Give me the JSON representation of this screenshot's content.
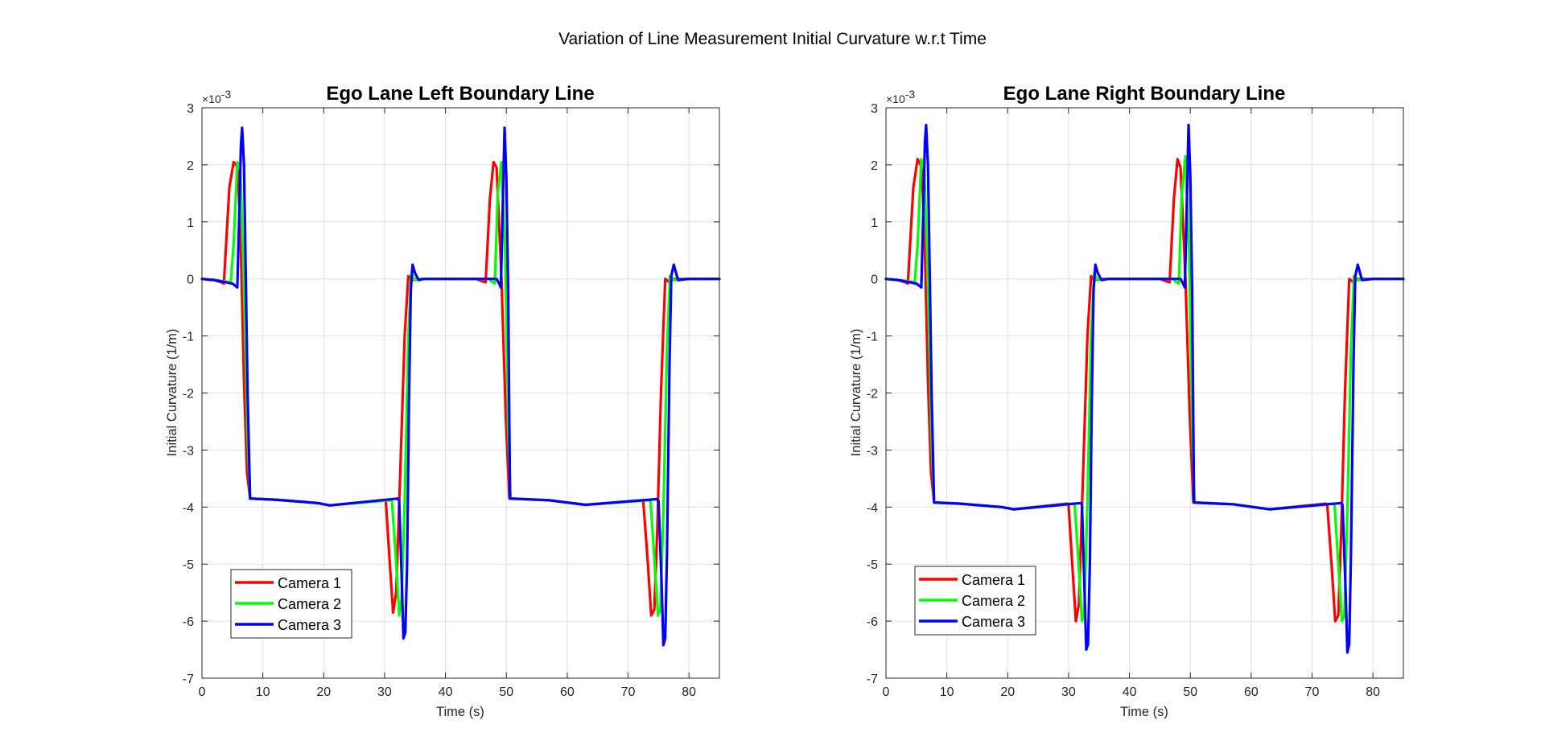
{
  "figure_title": "Variation of Line Measurement Initial Curvature w.r.t Time",
  "colors": {
    "camera1": "#ff0000",
    "camera2": "#00ff00",
    "camera3": "#0000ff",
    "grid": "#dfdfdf",
    "axes": "#262626"
  },
  "chart_data": [
    {
      "type": "line",
      "title": "Ego Lane Left Boundary Line",
      "xlabel": "Time (s)",
      "ylabel": "Initial Curvature (1/m)",
      "xlim": [
        0,
        85
      ],
      "ylim": [
        -7,
        3
      ],
      "y_multiplier": "×10-3",
      "y_multiplier_base": "×10",
      "y_multiplier_exp": "-3",
      "xticks": [
        0,
        10,
        20,
        30,
        40,
        50,
        60,
        70,
        80
      ],
      "yticks": [
        -7,
        -6,
        -5,
        -4,
        -3,
        -2,
        -1,
        0,
        1,
        2,
        3
      ],
      "grid": true,
      "legend_position": "bottom-left",
      "series": [
        {
          "name": "Camera 1",
          "color": "#ff0000",
          "x": [
            0,
            2,
            3.2,
            3.6,
            4.5,
            5.2,
            5.9,
            6.4,
            6.9,
            7.4,
            7.9,
            12,
            19,
            21,
            30,
            30.2,
            30.8,
            31.4,
            31.9,
            32.5,
            33.3,
            33.9,
            34.4,
            35.5,
            45,
            46.3,
            46.6,
            47.3,
            47.9,
            48.4,
            49.2,
            49.9,
            50.5,
            57,
            63,
            72.3,
            72.5,
            73.2,
            73.8,
            74.3,
            74.8,
            75.4,
            76.1,
            76.7,
            77.6,
            80,
            85
          ],
          "y": [
            0,
            -0.02,
            -0.06,
            -0.08,
            1.6,
            2.05,
            1.95,
            0.5,
            -1.8,
            -3.4,
            -3.85,
            -3.87,
            -3.93,
            -3.97,
            -3.88,
            -3.9,
            -4.9,
            -5.85,
            -5.5,
            -3.6,
            -1.0,
            0.05,
            -0.02,
            0,
            0,
            -0.05,
            -0.06,
            1.4,
            2.05,
            1.95,
            0,
            -2.4,
            -3.85,
            -3.88,
            -3.96,
            -3.88,
            -3.9,
            -4.9,
            -5.9,
            -5.8,
            -4.4,
            -2.0,
            0.0,
            -0.05,
            0,
            0,
            0
          ]
        },
        {
          "name": "Camera 2",
          "color": "#00ff00",
          "x": [
            0,
            2,
            4.2,
            4.7,
            5.2,
            5.8,
            6.3,
            6.8,
            7.2,
            7.5,
            7.9,
            12,
            19,
            21,
            31,
            31.2,
            31.8,
            32.4,
            32.8,
            33.3,
            33.9,
            34.4,
            34.9,
            36,
            47.2,
            47.6,
            48.1,
            48.6,
            49.2,
            49.8,
            50.3,
            50.7,
            57,
            63,
            73.5,
            73.7,
            74.3,
            74.9,
            75.3,
            75.8,
            76.4,
            76.9,
            77.6,
            80,
            85
          ],
          "y": [
            0,
            -0.02,
            -0.05,
            -0.08,
            0.6,
            2.05,
            1.9,
            0.3,
            -1.5,
            -2.8,
            -3.85,
            -3.87,
            -3.93,
            -3.97,
            -3.88,
            -3.9,
            -4.8,
            -5.9,
            -5.6,
            -3.9,
            -1.0,
            0.1,
            -0.02,
            0,
            0,
            -0.05,
            -0.08,
            1.5,
            2.05,
            0.5,
            -2.6,
            -3.85,
            -3.88,
            -3.96,
            -3.88,
            -3.9,
            -4.9,
            -5.9,
            -5.8,
            -4.1,
            -1.2,
            0.05,
            -0.02,
            0,
            0
          ]
        },
        {
          "name": "Camera 3",
          "color": "#0000ff",
          "x": [
            0,
            2,
            5.0,
            5.8,
            6.1,
            6.4,
            6.6,
            6.9,
            7.2,
            7.5,
            7.9,
            12,
            19,
            21,
            32.2,
            32.4,
            32.8,
            33.1,
            33.4,
            33.7,
            34.0,
            34.3,
            34.6,
            35,
            35.6,
            36.5,
            48.4,
            48.8,
            49.1,
            49.4,
            49.7,
            50.0,
            50.3,
            50.6,
            57,
            63,
            74.8,
            75.0,
            75.5,
            75.8,
            76.1,
            76.4,
            76.8,
            77.1,
            77.5,
            78.2,
            80,
            85
          ],
          "y": [
            0,
            -0.02,
            -0.08,
            -0.15,
            1.0,
            2.35,
            2.65,
            2.0,
            0,
            -2.0,
            -3.85,
            -3.87,
            -3.93,
            -3.97,
            -3.85,
            -3.9,
            -5.2,
            -6.3,
            -6.2,
            -5.0,
            -2.2,
            -0.2,
            0.25,
            0.1,
            -0.02,
            0,
            0,
            -0.08,
            -0.15,
            1.2,
            2.65,
            1.8,
            -0.2,
            -3.85,
            -3.88,
            -3.96,
            -3.86,
            -3.9,
            -5.3,
            -6.42,
            -6.3,
            -4.8,
            -1.5,
            0.05,
            0.25,
            -0.02,
            0,
            0
          ]
        }
      ]
    },
    {
      "type": "line",
      "title": "Ego Lane Right Boundary Line",
      "xlabel": "Time (s)",
      "ylabel": "Initial Curvature (1/m)",
      "xlim": [
        0,
        85
      ],
      "ylim": [
        -7,
        3
      ],
      "y_multiplier": "×10-3",
      "y_multiplier_base": "×10",
      "y_multiplier_exp": "-3",
      "xticks": [
        0,
        10,
        20,
        30,
        40,
        50,
        60,
        70,
        80
      ],
      "yticks": [
        -7,
        -6,
        -5,
        -4,
        -3,
        -2,
        -1,
        0,
        1,
        2,
        3
      ],
      "grid": true,
      "legend_position": "bottom-left",
      "series": [
        {
          "name": "Camera 1",
          "color": "#ff0000",
          "x": [
            0,
            2,
            3.2,
            3.6,
            4.5,
            5.2,
            5.9,
            6.4,
            6.9,
            7.4,
            7.9,
            12,
            19,
            21,
            29.8,
            30,
            30.6,
            31.2,
            31.7,
            32.3,
            33.1,
            33.7,
            34.2,
            35.3,
            45,
            46.3,
            46.6,
            47.3,
            47.9,
            48.4,
            49.2,
            49.9,
            50.5,
            57,
            63,
            72.3,
            72.5,
            73.2,
            73.8,
            74.3,
            74.8,
            75.4,
            76.1,
            76.7,
            77.6,
            80,
            85
          ],
          "y": [
            0,
            -0.02,
            -0.06,
            -0.08,
            1.6,
            2.1,
            1.95,
            0.5,
            -1.8,
            -3.4,
            -3.92,
            -3.94,
            -4.0,
            -4.04,
            -3.94,
            -3.96,
            -5.0,
            -6.0,
            -5.7,
            -3.7,
            -1.0,
            0.05,
            -0.02,
            0,
            0,
            -0.05,
            -0.06,
            1.4,
            2.1,
            1.95,
            0,
            -2.4,
            -3.92,
            -3.95,
            -4.04,
            -3.94,
            -3.96,
            -5.0,
            -6.0,
            -5.9,
            -4.4,
            -2.0,
            0.0,
            -0.05,
            0,
            0,
            0
          ]
        },
        {
          "name": "Camera 2",
          "color": "#00ff00",
          "x": [
            0,
            2,
            4.2,
            4.7,
            5.2,
            5.8,
            6.3,
            6.8,
            7.2,
            7.5,
            7.9,
            12,
            19,
            21,
            30.8,
            31,
            31.6,
            32.2,
            32.6,
            33.1,
            33.7,
            34.2,
            34.7,
            36,
            47.2,
            47.6,
            48.1,
            48.6,
            49.2,
            49.8,
            50.3,
            50.7,
            57,
            63,
            73.5,
            73.7,
            74.3,
            74.9,
            75.3,
            75.8,
            76.4,
            76.9,
            77.6,
            80,
            85
          ],
          "y": [
            0,
            -0.02,
            -0.05,
            -0.08,
            0.6,
            2.1,
            1.9,
            0.3,
            -1.5,
            -2.8,
            -3.92,
            -3.94,
            -4.0,
            -4.04,
            -3.94,
            -3.96,
            -4.9,
            -6.0,
            -5.8,
            -3.9,
            -1.0,
            0.1,
            -0.02,
            0,
            0,
            -0.05,
            -0.08,
            1.5,
            2.15,
            0.5,
            -2.6,
            -3.92,
            -3.95,
            -4.04,
            -3.94,
            -3.96,
            -5.0,
            -6.0,
            -5.9,
            -4.1,
            -1.2,
            0.05,
            -0.02,
            0,
            0
          ]
        },
        {
          "name": "Camera 3",
          "color": "#0000ff",
          "x": [
            0,
            2,
            5.0,
            5.8,
            6.1,
            6.4,
            6.6,
            6.9,
            7.2,
            7.5,
            7.9,
            12,
            19,
            21,
            32.0,
            32.2,
            32.6,
            32.9,
            33.2,
            33.5,
            33.8,
            34.1,
            34.4,
            34.8,
            35.4,
            36.5,
            48.4,
            48.8,
            49.1,
            49.4,
            49.7,
            50.0,
            50.3,
            50.6,
            57,
            63,
            74.8,
            75.0,
            75.5,
            75.8,
            76.1,
            76.4,
            76.8,
            77.1,
            77.5,
            78.2,
            80,
            85
          ],
          "y": [
            0,
            -0.02,
            -0.08,
            -0.15,
            1.0,
            2.4,
            2.7,
            2.0,
            0,
            -2.0,
            -3.92,
            -3.94,
            -4.0,
            -4.04,
            -3.93,
            -3.96,
            -5.4,
            -6.5,
            -6.4,
            -5.0,
            -2.2,
            -0.2,
            0.25,
            0.1,
            -0.02,
            0,
            0,
            -0.08,
            -0.15,
            1.2,
            2.7,
            1.8,
            -0.2,
            -3.92,
            -3.95,
            -4.04,
            -3.93,
            -3.96,
            -5.4,
            -6.55,
            -6.4,
            -4.8,
            -1.5,
            0.05,
            0.25,
            -0.02,
            0,
            0
          ]
        }
      ]
    }
  ]
}
